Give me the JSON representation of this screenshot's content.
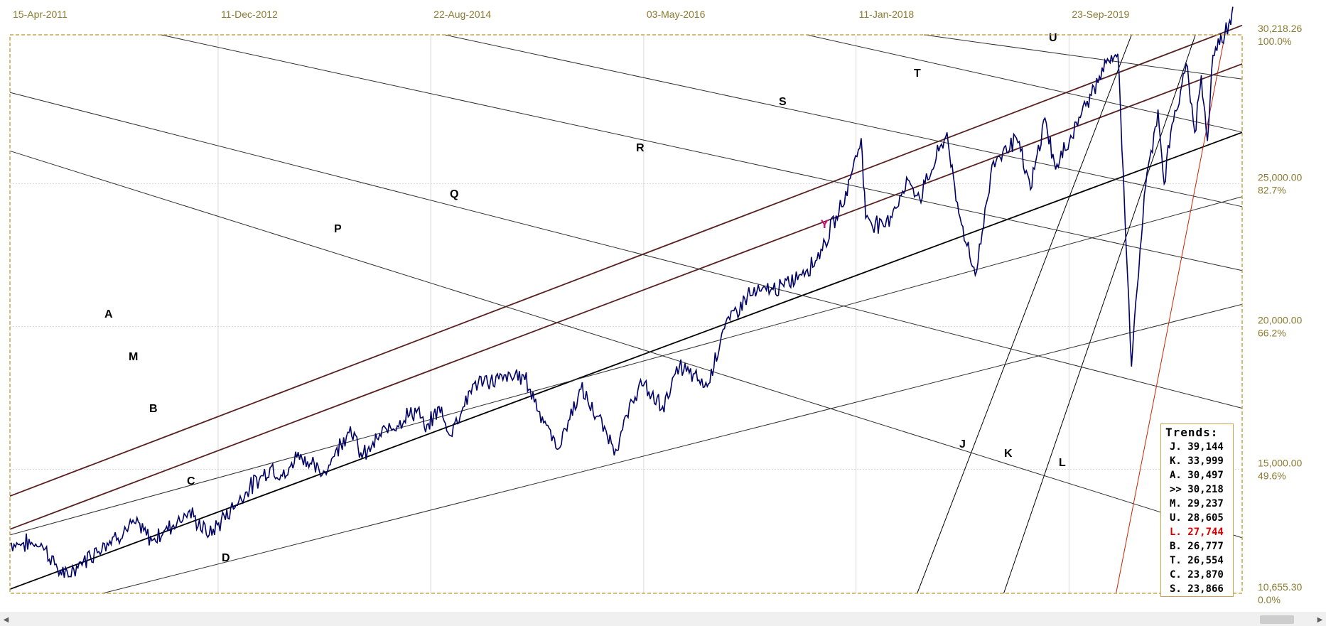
{
  "chart_data": {
    "type": "line",
    "title": "",
    "x_tick_labels": [
      "15-Apr-2011",
      "11-Dec-2012",
      "22-Aug-2014",
      "03-May-2016",
      "11-Jan-2018",
      "23-Sep-2019"
    ],
    "y_ticks": [
      {
        "value": "30,218.26",
        "pct": "100.0%"
      },
      {
        "value": "25,000.00",
        "pct": "82.7%"
      },
      {
        "value": "20,000.00",
        "pct": "66.2%"
      },
      {
        "value": "15,000.00",
        "pct": "49.6%"
      },
      {
        "value": "10,655.30",
        "pct": "0.0%"
      }
    ],
    "ylim": [
      10655.3,
      30218.26
    ],
    "xlim": [
      "2011-04-15",
      "2021-02-08"
    ],
    "grid": true,
    "price_series": {
      "name": "",
      "color": "#000066",
      "points": [
        [
          "2011-04-15",
          12400
        ],
        [
          "2011-07-15",
          12400
        ],
        [
          "2011-09-20",
          11200
        ],
        [
          "2011-11-15",
          11800
        ],
        [
          "2012-01-15",
          12400
        ],
        [
          "2012-04-15",
          13100
        ],
        [
          "2012-06-01",
          12500
        ],
        [
          "2012-09-15",
          13500
        ],
        [
          "2012-11-15",
          12700
        ],
        [
          "2013-03-01",
          14200
        ],
        [
          "2013-05-15",
          15100
        ],
        [
          "2013-06-24",
          14700
        ],
        [
          "2013-08-01",
          15600
        ],
        [
          "2013-10-10",
          14800
        ],
        [
          "2013-12-31",
          16500
        ],
        [
          "2014-02-03",
          15400
        ],
        [
          "2014-04-15",
          16400
        ],
        [
          "2014-07-15",
          17100
        ],
        [
          "2014-08-07",
          16300
        ],
        [
          "2014-09-15",
          17200
        ],
        [
          "2014-10-15",
          16200
        ],
        [
          "2014-12-26",
          18000
        ],
        [
          "2015-05-19",
          18300
        ],
        [
          "2015-08-25",
          15700
        ],
        [
          "2015-11-02",
          17800
        ],
        [
          "2016-02-11",
          15700
        ],
        [
          "2016-04-20",
          18000
        ],
        [
          "2016-06-27",
          17200
        ],
        [
          "2016-08-15",
          18600
        ],
        [
          "2016-11-04",
          17900
        ],
        [
          "2016-12-20",
          19900
        ],
        [
          "2017-03-01",
          21100
        ],
        [
          "2017-06-15",
          21400
        ],
        [
          "2017-09-15",
          22300
        ],
        [
          "2017-11-30",
          24200
        ],
        [
          "2018-01-26",
          26600
        ],
        [
          "2018-02-08",
          23800
        ],
        [
          "2018-04-02",
          23500
        ],
        [
          "2018-06-15",
          25100
        ],
        [
          "2018-07-15",
          24500
        ],
        [
          "2018-10-03",
          26800
        ],
        [
          "2018-10-29",
          24400
        ],
        [
          "2018-12-24",
          21800
        ],
        [
          "2019-02-15",
          25800
        ],
        [
          "2019-04-23",
          26600
        ],
        [
          "2019-06-03",
          24800
        ],
        [
          "2019-07-15",
          27300
        ],
        [
          "2019-08-15",
          25500
        ],
        [
          "2019-11-15",
          27900
        ],
        [
          "2020-01-17",
          29300
        ],
        [
          "2020-02-12",
          29550
        ],
        [
          "2020-02-28",
          25400
        ],
        [
          "2020-03-23",
          18600
        ],
        [
          "2020-04-29",
          24600
        ],
        [
          "2020-06-08",
          27600
        ],
        [
          "2020-06-26",
          25000
        ],
        [
          "2020-07-15",
          26800
        ],
        [
          "2020-09-02",
          29100
        ],
        [
          "2020-09-23",
          26800
        ],
        [
          "2020-10-12",
          28800
        ],
        [
          "2020-10-30",
          26500
        ],
        [
          "2020-11-15",
          29500
        ],
        [
          "2020-12-31",
          30600
        ],
        [
          "2021-01-12",
          31200
        ]
      ]
    },
    "trendlines": [
      {
        "label": "A",
        "value": 30497,
        "color": "#5a2020"
      },
      {
        "label": "M",
        "value": 29237,
        "color": "#5a2020"
      },
      {
        "label": "B",
        "value": 26777,
        "color": "#000000"
      },
      {
        "label": "C",
        "value": 23870,
        "color": "#303030"
      },
      {
        "label": "D",
        "value": null,
        "color": "#303030"
      },
      {
        "label": "P",
        "value": null,
        "color": "#303030"
      },
      {
        "label": "Q",
        "value": null,
        "color": "#303030"
      },
      {
        "label": "R",
        "value": null,
        "color": "#303030"
      },
      {
        "label": "S",
        "value": 23866,
        "color": "#303030"
      },
      {
        "label": "T",
        "value": 26554,
        "color": "#303030"
      },
      {
        "label": "U",
        "value": 28605,
        "color": "#303030"
      },
      {
        "label": "J",
        "value": 39144,
        "color": "#000000"
      },
      {
        "label": "K",
        "value": 33999,
        "color": "#000000"
      },
      {
        "label": "L",
        "value": 27744,
        "color": "#cc2200"
      }
    ],
    "marker": {
      "symbol": "Y",
      "color": "#cc1177"
    }
  },
  "trends_box": {
    "title": "Trends:",
    "rows": [
      {
        "key": "J.",
        "value": "39,144",
        "color": "#000000"
      },
      {
        "key": "K.",
        "value": "33,999",
        "color": "#000000"
      },
      {
        "key": "A.",
        "value": "30,497",
        "color": "#000000"
      },
      {
        "key": ">>",
        "value": "30,218",
        "color": "#000000"
      },
      {
        "key": "M.",
        "value": "29,237",
        "color": "#000000"
      },
      {
        "key": "U.",
        "value": "28,605",
        "color": "#000000"
      },
      {
        "key": "L.",
        "value": "27,744",
        "color": "#dd0000"
      },
      {
        "key": "B.",
        "value": "26,777",
        "color": "#000000"
      },
      {
        "key": "T.",
        "value": "26,554",
        "color": "#000000"
      },
      {
        "key": "C.",
        "value": "23,870",
        "color": "#000000"
      },
      {
        "key": "S.",
        "value": "23,866",
        "color": "#000000"
      }
    ]
  },
  "colors": {
    "frame": "#c9a64a",
    "axis_text": "#8a7a30",
    "grid": "#d8d8d8",
    "price": "#000066"
  }
}
